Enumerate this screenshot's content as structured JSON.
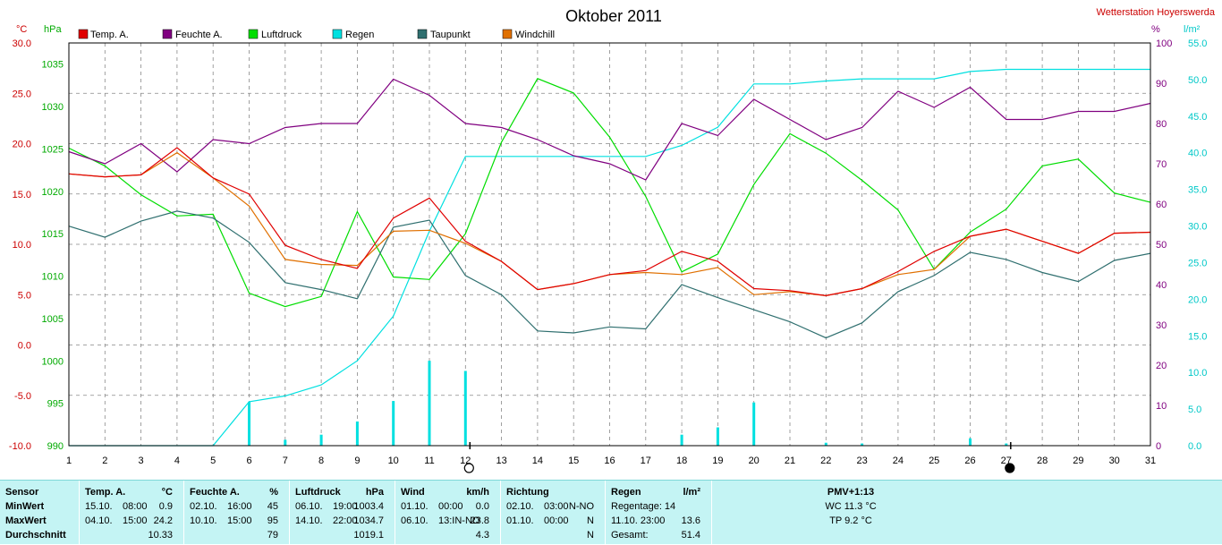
{
  "title": "Oktober 2011",
  "station": "Wetterstation Hoyerswerda",
  "axes": {
    "left_temp_unit": "°C",
    "left_press_unit": "hPa",
    "right_hum_unit": "%",
    "right_rain_unit": "l/m²",
    "temp_ticks": [
      "30.0",
      "25.0",
      "20.0",
      "15.0",
      "10.0",
      "5.0",
      "0.0",
      "-5.0",
      "-10.0"
    ],
    "press_ticks": [
      "1035",
      "1030",
      "1025",
      "1020",
      "1015",
      "1010",
      "1005",
      "1000",
      "995",
      "990"
    ],
    "hum_ticks": [
      "100",
      "90",
      "80",
      "70",
      "60",
      "50",
      "40",
      "30",
      "20",
      "10",
      "0"
    ],
    "rain_ticks": [
      "55.0",
      "50.0",
      "45.0",
      "40.0",
      "35.0",
      "30.0",
      "25.0",
      "20.0",
      "15.0",
      "10.0",
      "5.0",
      "0.0"
    ],
    "day_ticks": [
      "1",
      "2",
      "3",
      "4",
      "5",
      "6",
      "7",
      "8",
      "9",
      "10",
      "11",
      "12",
      "13",
      "14",
      "15",
      "16",
      "17",
      "18",
      "19",
      "20",
      "21",
      "22",
      "23",
      "24",
      "25",
      "26",
      "27",
      "28",
      "29",
      "30",
      "31"
    ]
  },
  "colors": {
    "temp": "#e00000",
    "humidity": "#800080",
    "pressure": "#00dd00",
    "rain": "#00e0e0",
    "dewpoint": "#2f6f6f",
    "windchill": "#e07000",
    "temp_axis": "#cc0000",
    "press_axis": "#00aa00",
    "hum_axis": "#800080",
    "rain_axis": "#00c8c8"
  },
  "chart_data": {
    "type": "line",
    "title": "Oktober 2011",
    "x": [
      1,
      2,
      3,
      4,
      5,
      6,
      7,
      8,
      9,
      10,
      11,
      12,
      13,
      14,
      15,
      16,
      17,
      18,
      19,
      20,
      21,
      22,
      23,
      24,
      25,
      26,
      27,
      28,
      29,
      30,
      31
    ],
    "legend": [
      "Temp. A.",
      "Feuchte A.",
      "Luftdruck",
      "Regen",
      "Taupunkt",
      "Windchill"
    ],
    "series": [
      {
        "name": "Temp. A.",
        "axis": "temp",
        "values": [
          17.0,
          16.7,
          16.9,
          19.6,
          16.6,
          15.0,
          9.9,
          8.5,
          7.6,
          12.6,
          14.6,
          10.3,
          8.3,
          5.5,
          6.1,
          7.0,
          7.4,
          9.3,
          8.3,
          5.6,
          5.4,
          4.9,
          5.6,
          7.3,
          9.3,
          10.8,
          11.5,
          10.3,
          9.1,
          11.1,
          11.2
        ]
      },
      {
        "name": "Feuchte A.",
        "axis": "hum",
        "values": [
          73,
          70,
          75,
          68,
          76,
          75,
          79,
          80,
          80,
          91,
          87,
          80,
          79,
          76,
          72,
          70,
          66,
          80,
          77,
          86,
          81,
          76,
          79,
          88,
          84,
          89,
          81,
          81,
          83,
          83,
          85
        ]
      },
      {
        "name": "Luftdruck",
        "axis": "press",
        "values": [
          1025.1,
          1023.0,
          1019.6,
          1017.1,
          1017.3,
          1008.0,
          1006.4,
          1007.6,
          1017.6,
          1009.9,
          1009.6,
          1015.0,
          1025.8,
          1033.3,
          1031.6,
          1026.4,
          1019.4,
          1010.5,
          1012.6,
          1020.8,
          1026.8,
          1024.5,
          1021.3,
          1017.8,
          1010.8,
          1015.2,
          1017.9,
          1023.0,
          1023.8,
          1019.8,
          1018.7
        ]
      },
      {
        "name": "Regen",
        "axis": "rain",
        "values": [
          0.0,
          0.0,
          0.0,
          0.0,
          0.0,
          6.0,
          6.8,
          8.3,
          11.6,
          17.7,
          29.3,
          39.5,
          39.5,
          39.5,
          39.5,
          39.5,
          39.5,
          41.0,
          43.5,
          49.4,
          49.4,
          49.8,
          50.1,
          50.1,
          50.1,
          51.1,
          51.4,
          51.4,
          51.4,
          51.4,
          51.4
        ]
      },
      {
        "name": "Taupunkt",
        "axis": "temp",
        "values": [
          11.8,
          10.7,
          12.3,
          13.3,
          12.6,
          10.2,
          6.2,
          5.5,
          4.6,
          11.7,
          12.4,
          6.9,
          5.0,
          1.4,
          1.2,
          1.8,
          1.6,
          6.0,
          4.7,
          3.5,
          2.3,
          0.7,
          2.2,
          5.3,
          6.9,
          9.2,
          8.5,
          7.2,
          6.3,
          8.4,
          9.1
        ]
      },
      {
        "name": "Windchill",
        "axis": "temp",
        "values": [
          17.0,
          16.7,
          16.9,
          19.1,
          16.6,
          13.8,
          8.5,
          8.0,
          7.9,
          11.3,
          11.4,
          10.1,
          8.3,
          5.5,
          6.1,
          7.0,
          7.2,
          7.0,
          7.7,
          5.0,
          5.3,
          4.9,
          5.6,
          7.0,
          7.5,
          10.8,
          11.5,
          10.3,
          9.1,
          11.1,
          11.2
        ]
      }
    ],
    "daily_rain": [
      0,
      0,
      0,
      0,
      0,
      6.0,
      0.8,
      1.5,
      3.3,
      6.1,
      11.6,
      10.2,
      0,
      0,
      0,
      0,
      0,
      1.5,
      2.5,
      5.9,
      0,
      0.4,
      0.3,
      0,
      0,
      1.0,
      0.3,
      0,
      0,
      0,
      0
    ],
    "ylim_temp": [
      -10,
      30
    ],
    "ylim_press": [
      990,
      1037.5
    ],
    "ylim_hum": [
      0,
      100
    ],
    "ylim_rain": [
      0,
      55
    ],
    "moon_phases": [
      {
        "day": 12,
        "phase": "full"
      },
      {
        "day": 27,
        "phase": "new"
      }
    ],
    "grid": true
  },
  "stats": {
    "sensor": {
      "header": "Sensor",
      "rows": [
        "MinWert",
        "MaxWert",
        "Durchschnitt"
      ]
    },
    "temp": {
      "header": "Temp. A.",
      "unit": "°C",
      "rows": [
        [
          "15.10.",
          "08:00",
          "0.9"
        ],
        [
          "04.10.",
          "15:00",
          "24.2"
        ],
        [
          "",
          "",
          "10.33"
        ]
      ]
    },
    "hum": {
      "header": "Feuchte A.",
      "unit": "%",
      "rows": [
        [
          "02.10.",
          "16:00",
          "45"
        ],
        [
          "10.10.",
          "15:00",
          "95"
        ],
        [
          "",
          "",
          "79"
        ]
      ]
    },
    "press": {
      "header": "Luftdruck",
      "unit": "hPa",
      "rows": [
        [
          "06.10.",
          "19:00",
          "1003.4"
        ],
        [
          "14.10.",
          "22:00",
          "1034.7"
        ],
        [
          "",
          "",
          "1019.1"
        ]
      ]
    },
    "wind": {
      "header": "Wind",
      "unit": "km/h",
      "rows": [
        [
          "01.10.",
          "00:00",
          "0.0"
        ],
        [
          "06.10.",
          "13:IN-NO",
          "23.8"
        ],
        [
          "",
          "",
          "4.3"
        ]
      ]
    },
    "dir": {
      "header": "Richtung",
      "rows": [
        [
          "02.10.",
          "03:00",
          "N-NO"
        ],
        [
          "01.10.",
          "00:00",
          "N"
        ],
        [
          "",
          "",
          "N"
        ]
      ]
    },
    "rain": {
      "header": "Regen",
      "unit": "l/m²",
      "rows": [
        [
          "Regentage: 14",
          ""
        ],
        [
          "11.10.   23:00",
          "13.6"
        ],
        [
          "Gesamt:",
          "51.4"
        ]
      ]
    },
    "pmv": {
      "header": "PMV+1:13",
      "rows": [
        "WC 11.3 °C",
        "TP 9.2 °C"
      ]
    }
  }
}
